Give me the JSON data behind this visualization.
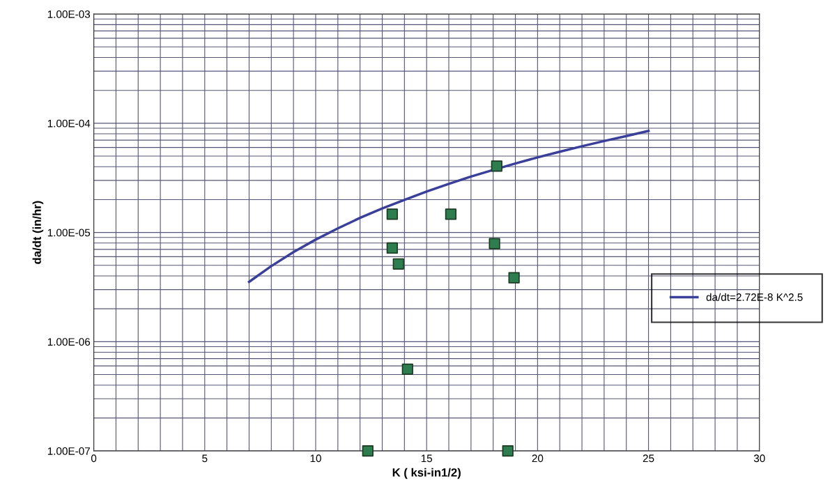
{
  "chart_data": {
    "type": "scatter",
    "xlabel": "K ( ksi-in1/2)",
    "ylabel": "da/dt (in/hr)",
    "log": "y",
    "grid": true,
    "legend": "right",
    "marker": "square",
    "xlim": [
      0,
      30
    ],
    "ylim": [
      1e-07,
      0.001
    ],
    "xticks": [
      0,
      {
        "value": 1,
        "label": null
      },
      {
        "value": 2,
        "label": null
      },
      {
        "value": 3,
        "label": null
      },
      {
        "value": 4,
        "label": null
      },
      5,
      {
        "value": 6,
        "label": null
      },
      {
        "value": 7,
        "label": null
      },
      {
        "value": 8,
        "label": null
      },
      {
        "value": 9,
        "label": null
      },
      10,
      {
        "value": 11,
        "label": null
      },
      {
        "value": 12,
        "label": null
      },
      {
        "value": 13,
        "label": null
      },
      {
        "value": 14,
        "label": null
      },
      15,
      {
        "value": 16,
        "label": null
      },
      {
        "value": 17,
        "label": null
      },
      {
        "value": 18,
        "label": null
      },
      {
        "value": 19,
        "label": null
      },
      20,
      {
        "value": 21,
        "label": null
      },
      {
        "value": 22,
        "label": null
      },
      {
        "value": 23,
        "label": null
      },
      {
        "value": 24,
        "label": null
      },
      25,
      {
        "value": 26,
        "label": null
      },
      {
        "value": 27,
        "label": null
      },
      {
        "value": 28,
        "label": null
      },
      {
        "value": 29,
        "label": null
      },
      30
    ],
    "yticks": [
      {
        "value": 1e-07,
        "label": "1.00E-07"
      },
      {
        "value": 2e-07,
        "label": null
      },
      {
        "value": 3e-07,
        "label": null
      },
      {
        "value": 4e-07,
        "label": null
      },
      {
        "value": 5e-07,
        "label": null
      },
      {
        "value": 6e-07,
        "label": null
      },
      {
        "value": 7e-07,
        "label": null
      },
      {
        "value": 8e-07,
        "label": null
      },
      {
        "value": 9e-07,
        "label": null
      },
      {
        "value": 1e-06,
        "label": "1.00E-06"
      },
      {
        "value": 2e-06,
        "label": null
      },
      {
        "value": 3e-06,
        "label": null
      },
      {
        "value": 4e-06,
        "label": null
      },
      {
        "value": 5e-06,
        "label": null
      },
      {
        "value": 6e-06,
        "label": null
      },
      {
        "value": 7e-06,
        "label": null
      },
      {
        "value": 8e-06,
        "label": null
      },
      {
        "value": 9e-06,
        "label": null
      },
      {
        "value": 1e-05,
        "label": "1.00E-05"
      },
      {
        "value": 2e-05,
        "label": null
      },
      {
        "value": 3e-05,
        "label": null
      },
      {
        "value": 4e-05,
        "label": null
      },
      {
        "value": 5e-05,
        "label": null
      },
      {
        "value": 6e-05,
        "label": null
      },
      {
        "value": 7e-05,
        "label": null
      },
      {
        "value": 8e-05,
        "label": null
      },
      {
        "value": 9e-05,
        "label": null
      },
      {
        "value": 0.0001,
        "label": "1.00E-04"
      },
      {
        "value": 0.0002,
        "label": null
      },
      {
        "value": 0.0003,
        "label": null
      },
      {
        "value": 0.0004,
        "label": null
      },
      {
        "value": 0.0005,
        "label": null
      },
      {
        "value": 0.0006,
        "label": null
      },
      {
        "value": 0.0007,
        "label": null
      },
      {
        "value": 0.0008,
        "label": null
      },
      {
        "value": 0.0009,
        "label": null
      },
      {
        "value": 0.001,
        "label": "1.00E-03"
      }
    ],
    "series": [
      {
        "color": "#2e7d4f",
        "x": [
          13.45,
          13.45,
          13.73,
          16.09,
          18.16,
          18.06,
          18.94,
          14.14,
          12.35,
          18.66
        ],
        "values": [
          1.47e-05,
          7.2e-06,
          5.15e-06,
          1.47e-05,
          4.05e-05,
          7.9e-06,
          3.85e-06,
          5.6e-07,
          1e-07,
          1e-07
        ]
      },
      {
        "type": "line",
        "name": "da/dt=2.72E-8 K^2.5",
        "color": "#3a3f9a",
        "marker": "none",
        "x": [
          7,
          8,
          9,
          10,
          11,
          12,
          13,
          14,
          15,
          16,
          17,
          18,
          19,
          20,
          21,
          22,
          23,
          24,
          25
        ],
        "values": [
          3.53e-06,
          4.92e-06,
          6.61e-06,
          8.6e-06,
          1.09e-05,
          1.36e-05,
          1.66e-05,
          1.99e-05,
          2.37e-05,
          2.79e-05,
          3.25e-05,
          3.74e-05,
          4.28e-05,
          4.87e-05,
          5.49e-05,
          6.16e-05,
          6.88e-05,
          7.64e-05,
          8.5e-05
        ]
      }
    ]
  }
}
